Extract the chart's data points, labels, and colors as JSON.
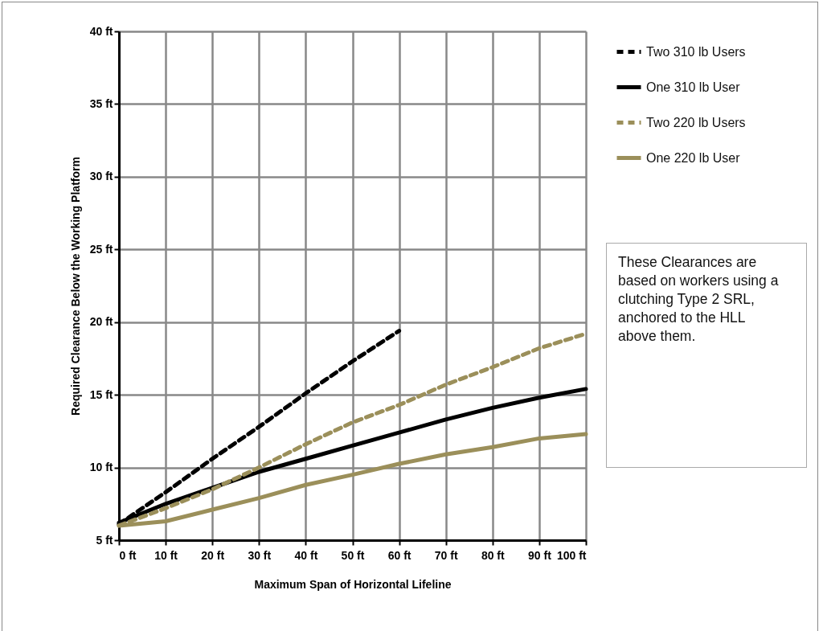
{
  "chart_data": {
    "type": "line",
    "xlabel": "Maximum Span of Horizontal Lifeline",
    "ylabel": "Required Clearance  Below the Working Platform",
    "x": [
      0,
      10,
      20,
      30,
      40,
      50,
      60,
      70,
      80,
      90,
      100
    ],
    "series": [
      {
        "name": "Two 310 lb Users",
        "color": "#000000",
        "line_style": "dashed",
        "values": [
          6.1,
          8.3,
          10.6,
          12.8,
          15.1,
          17.3,
          19.4,
          null,
          null,
          null,
          null
        ]
      },
      {
        "name": "One 310 lb User",
        "color": "#000000",
        "line_style": "solid",
        "values": [
          6.2,
          7.5,
          8.6,
          9.7,
          10.6,
          11.5,
          12.4,
          13.3,
          14.1,
          14.8,
          15.4
        ]
      },
      {
        "name": "Two 220 lb Users",
        "color": "#9b8f5a",
        "line_style": "dashed",
        "values": [
          6.0,
          7.2,
          8.5,
          10.0,
          11.6,
          13.1,
          14.3,
          15.7,
          16.9,
          18.2,
          19.2
        ]
      },
      {
        "name": "One 220 lb User",
        "color": "#9b8f5a",
        "line_style": "solid",
        "values": [
          6.0,
          6.3,
          7.1,
          7.9,
          8.8,
          9.5,
          10.25,
          10.9,
          11.4,
          12.0,
          12.3
        ]
      }
    ],
    "xlim": [
      0,
      100
    ],
    "xticks": [
      {
        "value": 0,
        "label": "0 ft"
      },
      {
        "value": 10,
        "label": "10 ft"
      },
      {
        "value": 20,
        "label": "20 ft"
      },
      {
        "value": 30,
        "label": "30 ft"
      },
      {
        "value": 40,
        "label": "40 ft"
      },
      {
        "value": 50,
        "label": "50 ft"
      },
      {
        "value": 60,
        "label": "60 ft"
      },
      {
        "value": 70,
        "label": "70 ft"
      },
      {
        "value": 80,
        "label": "80 ft"
      },
      {
        "value": 90,
        "label": "90 ft"
      },
      {
        "value": 100,
        "label": "100 ft"
      }
    ],
    "ylim": [
      5,
      40
    ],
    "yticks": [
      {
        "value": 5,
        "label": "5 ft"
      },
      {
        "value": 10,
        "label": "10 ft"
      },
      {
        "value": 15,
        "label": "15 ft"
      },
      {
        "value": 20,
        "label": "20 ft"
      },
      {
        "value": 25,
        "label": "25 ft"
      },
      {
        "value": 30,
        "label": "30 ft"
      },
      {
        "value": 35,
        "label": "35 ft"
      },
      {
        "value": 40,
        "label": "40 ft"
      }
    ],
    "grid": true,
    "legend": "top right",
    "marker": "none",
    "annotations": [
      "These Clearances are based on workers using a clutching Type 2 SRL, anchored to the HLL above them."
    ]
  }
}
